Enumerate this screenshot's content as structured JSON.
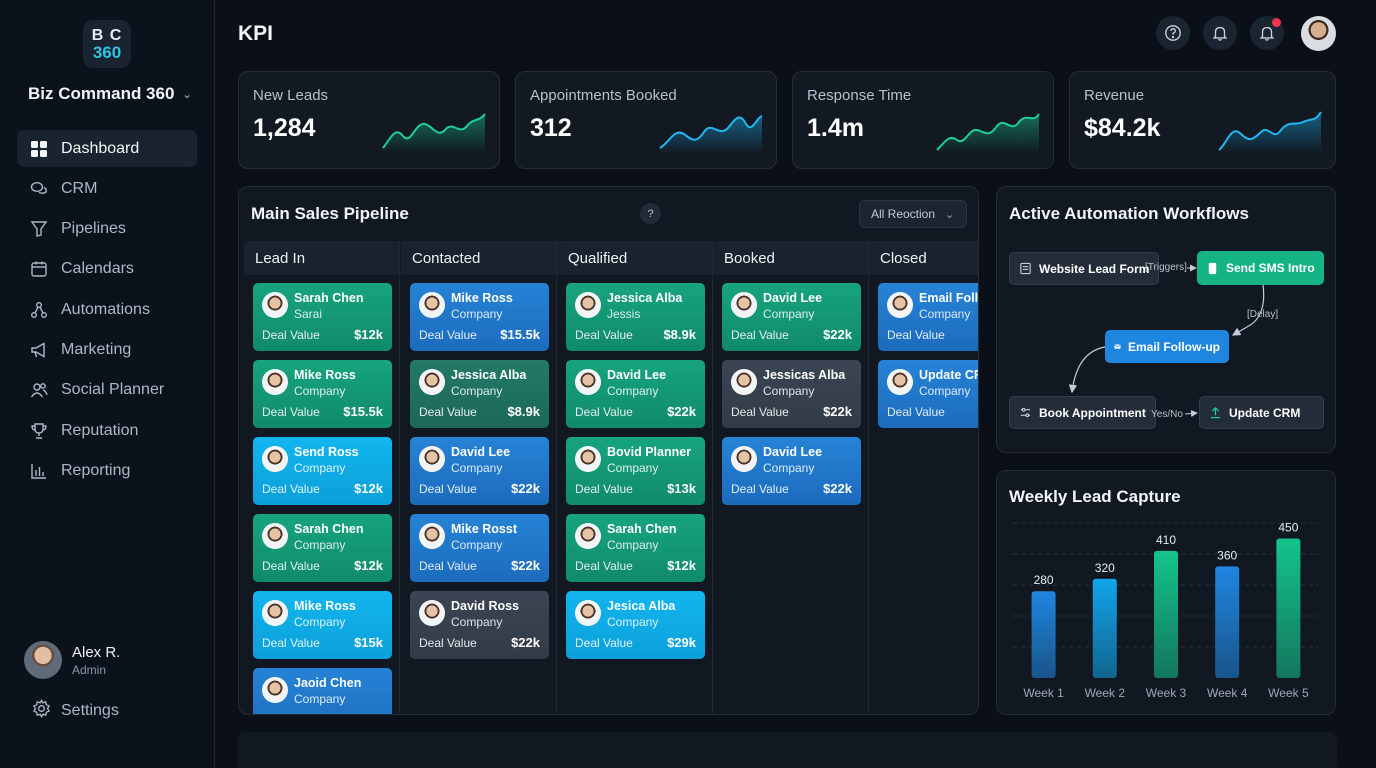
{
  "brand": {
    "logo_line1": "B C",
    "logo_line2": "360",
    "name": "Biz Command 360"
  },
  "sidebar": {
    "items": [
      {
        "label": "Dashboard",
        "icon": "grid-icon",
        "active": true
      },
      {
        "label": "CRM",
        "icon": "chat-bubbles-icon"
      },
      {
        "label": "Pipelines",
        "icon": "funnel-icon"
      },
      {
        "label": "Calendars",
        "icon": "calendar-icon"
      },
      {
        "label": "Automations",
        "icon": "nodes-icon"
      },
      {
        "label": "Marketing",
        "icon": "megaphone-icon"
      },
      {
        "label": "Social Planner",
        "icon": "users-icon"
      },
      {
        "label": "Reputation",
        "icon": "trophy-icon"
      },
      {
        "label": "Reporting",
        "icon": "bar-chart-icon"
      }
    ],
    "user": {
      "name": "Alex R.",
      "role": "Admin"
    },
    "settings_label": "Settings"
  },
  "header": {
    "title": "KPI"
  },
  "kpis": [
    {
      "label": "New Leads",
      "value": "1,284"
    },
    {
      "label": "Appointments Booked",
      "value": "312"
    },
    {
      "label": "Response Time",
      "value": "1.4m"
    },
    {
      "label": "Revenue",
      "value": "$84.2k"
    }
  ],
  "pipeline": {
    "title": "Main Sales Pipeline",
    "help": "?",
    "filter": "All Reoction",
    "columns": [
      {
        "name": "Lead In",
        "cards": [
          {
            "name": "Sarah Chen",
            "company": "Sarai",
            "deal_label": "Deal Value",
            "value": "$12k",
            "color": "green"
          },
          {
            "name": "Mike Ross",
            "company": "Company",
            "deal_label": "Deal Value",
            "value": "$15.5k",
            "color": "green"
          },
          {
            "name": "Send Ross",
            "company": "Company",
            "deal_label": "Deal Value",
            "value": "$12k",
            "color": "cyan"
          },
          {
            "name": "Sarah Chen",
            "company": "Company",
            "deal_label": "Deal Value",
            "value": "$12k",
            "color": "green"
          },
          {
            "name": "Mike Ross",
            "company": "Company",
            "deal_label": "Deal Value",
            "value": "$15k",
            "color": "cyan"
          },
          {
            "name": "Jaoid Chen",
            "company": "Company",
            "deal_label": "",
            "value": "",
            "color": "blue"
          }
        ]
      },
      {
        "name": "Contacted",
        "cards": [
          {
            "name": "Mike Ross",
            "company": "Company",
            "deal_label": "Deal Value",
            "value": "$15.5k",
            "color": "blue"
          },
          {
            "name": "Jessica Alba",
            "company": "Company",
            "deal_label": "Deal Value",
            "value": "$8.9k",
            "color": "darkgreen"
          },
          {
            "name": "David Lee",
            "company": "Company",
            "deal_label": "Deal Value",
            "value": "$22k",
            "color": "blue"
          },
          {
            "name": "Mike Rosst",
            "company": "Company",
            "deal_label": "Deal Value",
            "value": "$22k",
            "color": "blue"
          },
          {
            "name": "David Ross",
            "company": "Company",
            "deal_label": "Deal Value",
            "value": "$22k",
            "color": "slate"
          }
        ]
      },
      {
        "name": "Qualified",
        "cards": [
          {
            "name": "Jessica Alba",
            "company": "Jessis",
            "deal_label": "Deal Value",
            "value": "$8.9k",
            "color": "green"
          },
          {
            "name": "David Lee",
            "company": "Company",
            "deal_label": "Deal Value",
            "value": "$22k",
            "color": "green"
          },
          {
            "name": "Bovid Planner",
            "company": "Company",
            "deal_label": "Deal Value",
            "value": "$13k",
            "color": "green"
          },
          {
            "name": "Sarah Chen",
            "company": "Company",
            "deal_label": "Deal Value",
            "value": "$12k",
            "color": "green"
          },
          {
            "name": "Jesica Alba",
            "company": "Company",
            "deal_label": "Deal Value",
            "value": "$29k",
            "color": "cyan"
          }
        ]
      },
      {
        "name": "Booked",
        "cards": [
          {
            "name": "David Lee",
            "company": "Company",
            "deal_label": "Deal Value",
            "value": "$22k",
            "color": "green"
          },
          {
            "name": "Jessicas Alba",
            "company": "Company",
            "deal_label": "Deal Value",
            "value": "$22k",
            "color": "slate"
          },
          {
            "name": "David Lee",
            "company": "Company",
            "deal_label": "Deal Value",
            "value": "$22k",
            "color": "blue"
          }
        ]
      },
      {
        "name": "Closed",
        "cards": [
          {
            "name": "Email Folle",
            "company": "Company",
            "deal_label": "Deal Value",
            "value": "",
            "color": "blue"
          },
          {
            "name": "Update CRI",
            "company": "Company",
            "deal_label": "Deal Value",
            "value": "",
            "color": "blue"
          }
        ]
      }
    ]
  },
  "workflows": {
    "title": "Active Automation Workflows",
    "nodes": {
      "website": "Website Lead Form",
      "sms": "Send SMS Intro",
      "email": "Email Follow-up",
      "book": "Book Appointment",
      "crm": "Update CRM"
    },
    "labels": {
      "triggers": "[Triggers]",
      "delay": "[Delay]",
      "yesno": "Yes/No"
    }
  },
  "weekly": {
    "title": "Weekly Lead Capture"
  },
  "chart_data": {
    "type": "bar",
    "title": "Weekly Lead Capture",
    "categories": [
      "Week 1",
      "Week 2",
      "Week 3",
      "Week 4",
      "Week 5"
    ],
    "values": [
      280,
      320,
      410,
      360,
      450
    ],
    "value_labels": [
      "280",
      "320",
      "410",
      "360",
      "450"
    ],
    "colors": [
      "#1f86e0",
      "#12a4ea",
      "#14c48d",
      "#1f86e0",
      "#14c48d"
    ],
    "ylim": [
      0,
      500
    ],
    "grid": true
  }
}
